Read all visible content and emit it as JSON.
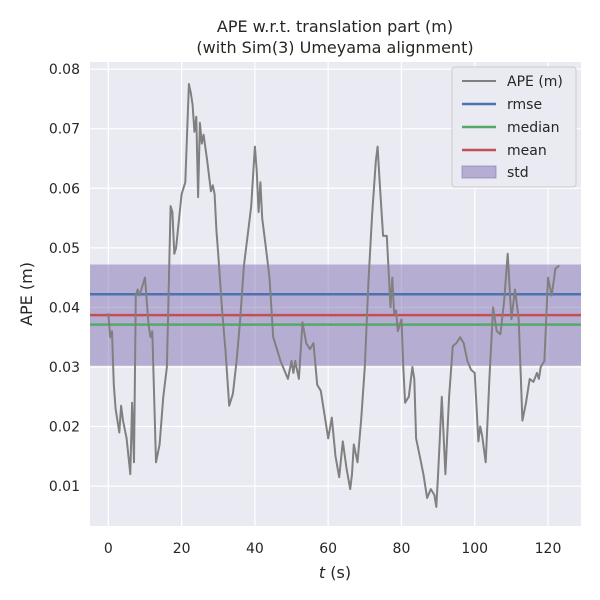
{
  "chart_data": {
    "type": "line",
    "title": "APE w.r.t. translation part (m)",
    "subtitle": "(with Sim(3) Umeyama alignment)",
    "xlabel_var": "t",
    "xlabel_unit": " (s)",
    "ylabel": "APE (m)",
    "xlim": [
      -5,
      129
    ],
    "ylim": [
      0.0033,
      0.0812
    ],
    "xticks": [
      0,
      20,
      40,
      60,
      80,
      100,
      120
    ],
    "yticks": [
      0.01,
      0.02,
      0.03,
      0.04,
      0.05,
      0.06,
      0.07,
      0.08
    ],
    "ytick_labels": [
      "0.01",
      "0.02",
      "0.03",
      "0.04",
      "0.05",
      "0.06",
      "0.07",
      "0.08"
    ],
    "grid": true,
    "legend_position": "top-right",
    "stats": {
      "rmse": 0.0422,
      "median": 0.0371,
      "mean": 0.0387,
      "std": 0.0085
    },
    "colors": {
      "ape": "#808080",
      "rmse": "#4c72b0",
      "median": "#55a868",
      "mean": "#c44e52",
      "std": "#8172b2",
      "background": "#eaeaf2"
    },
    "legend": [
      {
        "key": "ape",
        "label": "APE (m)",
        "kind": "line"
      },
      {
        "key": "rmse",
        "label": "rmse",
        "kind": "line"
      },
      {
        "key": "median",
        "label": "median",
        "kind": "line"
      },
      {
        "key": "mean",
        "label": "mean",
        "kind": "line"
      },
      {
        "key": "std",
        "label": "std",
        "kind": "patch"
      }
    ],
    "series": [
      {
        "x": [
          0,
          0.5,
          1,
          1.5,
          2,
          3,
          3.5,
          4,
          5,
          6,
          6.5,
          7,
          7.5,
          8,
          8.5,
          9,
          10,
          11,
          11.5,
          12,
          13,
          14,
          15,
          16,
          17,
          17.5,
          18,
          18.5,
          19,
          20,
          21,
          22,
          22.5,
          23,
          23.5,
          24,
          24.5,
          25,
          25.5,
          26,
          27,
          28,
          28.5,
          29,
          29.5,
          30,
          31,
          32,
          33,
          34,
          35,
          36,
          37,
          38,
          39,
          40,
          40.5,
          41,
          41.5,
          42,
          43,
          44,
          45,
          46,
          47,
          48,
          49,
          50,
          50.5,
          51,
          52,
          53,
          54,
          55,
          56,
          57,
          58,
          59,
          60,
          61,
          62,
          63,
          64,
          65,
          66,
          66.5,
          67,
          68,
          69,
          70,
          71,
          72,
          73,
          73.5,
          74,
          75,
          76,
          77,
          77.5,
          78,
          78.5,
          79,
          79.5,
          80,
          80.5,
          81,
          82,
          83,
          83.5,
          84,
          85,
          86,
          87,
          88,
          89,
          89.5,
          90,
          91,
          92,
          93,
          94,
          95,
          96,
          97,
          98,
          99,
          100,
          101,
          101.5,
          102,
          103,
          104,
          105,
          106,
          107,
          108,
          109,
          110,
          111,
          112,
          113,
          114,
          115,
          116,
          117,
          117.5,
          118,
          119,
          120,
          121,
          122,
          123
        ],
        "y": [
          0.039,
          0.035,
          0.036,
          0.027,
          0.023,
          0.019,
          0.0235,
          0.021,
          0.018,
          0.012,
          0.024,
          0.014,
          0.042,
          0.043,
          0.042,
          0.043,
          0.045,
          0.037,
          0.035,
          0.036,
          0.014,
          0.017,
          0.025,
          0.03,
          0.057,
          0.056,
          0.049,
          0.05,
          0.053,
          0.059,
          0.061,
          0.0775,
          0.076,
          0.074,
          0.0695,
          0.072,
          0.0585,
          0.071,
          0.0675,
          0.069,
          0.0645,
          0.0595,
          0.0605,
          0.059,
          0.053,
          0.049,
          0.04,
          0.0325,
          0.0235,
          0.0255,
          0.031,
          0.038,
          0.047,
          0.052,
          0.057,
          0.067,
          0.063,
          0.056,
          0.061,
          0.055,
          0.05,
          0.045,
          0.035,
          0.033,
          0.031,
          0.0295,
          0.028,
          0.031,
          0.029,
          0.031,
          0.028,
          0.0375,
          0.034,
          0.033,
          0.034,
          0.027,
          0.026,
          0.022,
          0.018,
          0.0215,
          0.015,
          0.0115,
          0.0175,
          0.013,
          0.0095,
          0.012,
          0.017,
          0.014,
          0.021,
          0.03,
          0.0445,
          0.0555,
          0.0645,
          0.067,
          0.0615,
          0.052,
          0.052,
          0.04,
          0.045,
          0.039,
          0.0395,
          0.036,
          0.037,
          0.038,
          0.03,
          0.024,
          0.025,
          0.03,
          0.028,
          0.018,
          0.015,
          0.012,
          0.008,
          0.0095,
          0.0085,
          0.0065,
          0.012,
          0.025,
          0.012,
          0.025,
          0.0335,
          0.034,
          0.035,
          0.034,
          0.031,
          0.0295,
          0.029,
          0.0175,
          0.02,
          0.0185,
          0.014,
          0.028,
          0.04,
          0.036,
          0.0355,
          0.041,
          0.049,
          0.038,
          0.043,
          0.038,
          0.021,
          0.024,
          0.028,
          0.0275,
          0.029,
          0.028,
          0.03,
          0.031,
          0.045,
          0.042,
          0.0465,
          0.047
        ]
      }
    ]
  }
}
